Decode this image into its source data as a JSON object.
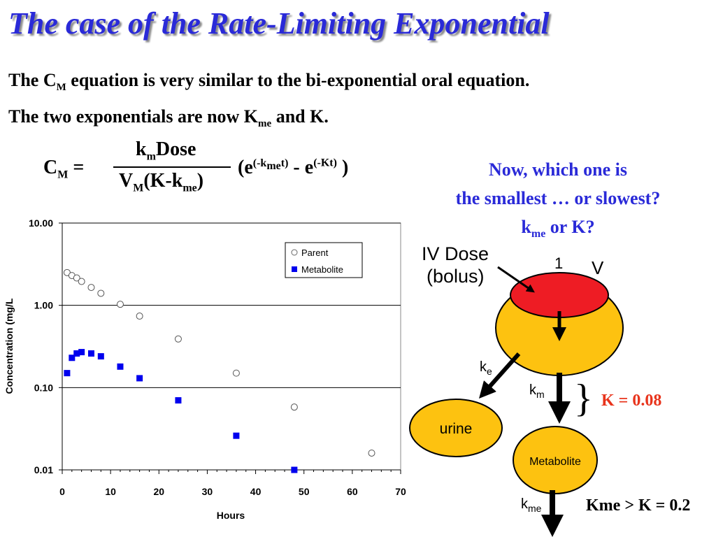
{
  "slide": {
    "title": "The case of the Rate-Limiting Exponential",
    "intro": {
      "l1_a": "The C",
      "l1_sub": "M",
      "l1_b": " equation is very similar to the bi-exponential oral equation.",
      "l2_a": "The two exponentials are now K",
      "l2_sub": "me",
      "l2_b": " and K."
    },
    "equation": {
      "lhs": "C",
      "lhs_sub": "M",
      "eq": " =",
      "num_a": "k",
      "num_sub": "m",
      "num_b": "Dose",
      "den_a": "V",
      "den_sub1": "M",
      "den_b": "(K-k",
      "den_sub2": "me",
      "den_c": ")",
      "rhs_a": "(e",
      "rhs_sup1_a": "(-k",
      "rhs_sup1_sub": "me",
      "rhs_sup1_b": "t)",
      "rhs_b": " - e",
      "rhs_sup2": "(-Kt)",
      "rhs_c": " )"
    },
    "question": {
      "line1": "Now, which one is",
      "line2": "the smallest … or slowest?",
      "line3_a": "k",
      "line3_sub": "me",
      "line3_b": " or K?"
    }
  },
  "diagram": {
    "iv_dose_line1": "IV Dose",
    "iv_dose_line2": "(bolus)",
    "label_1": "1",
    "label_v": "V",
    "ke_main": "k",
    "ke_sub": "e",
    "km_main": "k",
    "km_sub": "m",
    "kme_main": "k",
    "kme_sub": "me",
    "urine": "urine",
    "metabolite": "Metabolite",
    "brace": "}",
    "k_value": "K = 0.08",
    "kme_compare": "Kme > K = 0.2",
    "colors": {
      "red": "#ee1c24",
      "yellow": "#fdc210",
      "k_value_color": "#e8341c"
    }
  },
  "chart_data": {
    "type": "scatter",
    "xlabel": "Hours",
    "ylabel": "Concentration (mg/L",
    "xlim": [
      0,
      70
    ],
    "ylim": [
      0.01,
      10
    ],
    "yscale": "log",
    "x_ticks": [
      "0",
      "10",
      "20",
      "30",
      "40",
      "50",
      "60",
      "70"
    ],
    "y_ticks": [
      "10.00",
      "1.00",
      "0.10",
      "0.01"
    ],
    "grid": "horizontal",
    "legend_position": "top-right",
    "series": [
      {
        "name": "Parent",
        "marker": "open-circle",
        "color": "#000000",
        "x": [
          1,
          2,
          3,
          4,
          6,
          8,
          12,
          16,
          24,
          36,
          48,
          64
        ],
        "y": [
          2.5,
          2.3,
          2.15,
          1.95,
          1.65,
          1.4,
          1.03,
          0.74,
          0.39,
          0.15,
          0.058,
          0.016
        ]
      },
      {
        "name": "Metabolite",
        "marker": "filled-square",
        "color": "#0000ee",
        "x": [
          1,
          2,
          3,
          4,
          6,
          8,
          12,
          16,
          24,
          36,
          48
        ],
        "y": [
          0.15,
          0.23,
          0.26,
          0.27,
          0.26,
          0.24,
          0.18,
          0.13,
          0.07,
          0.026,
          0.01
        ]
      }
    ]
  }
}
